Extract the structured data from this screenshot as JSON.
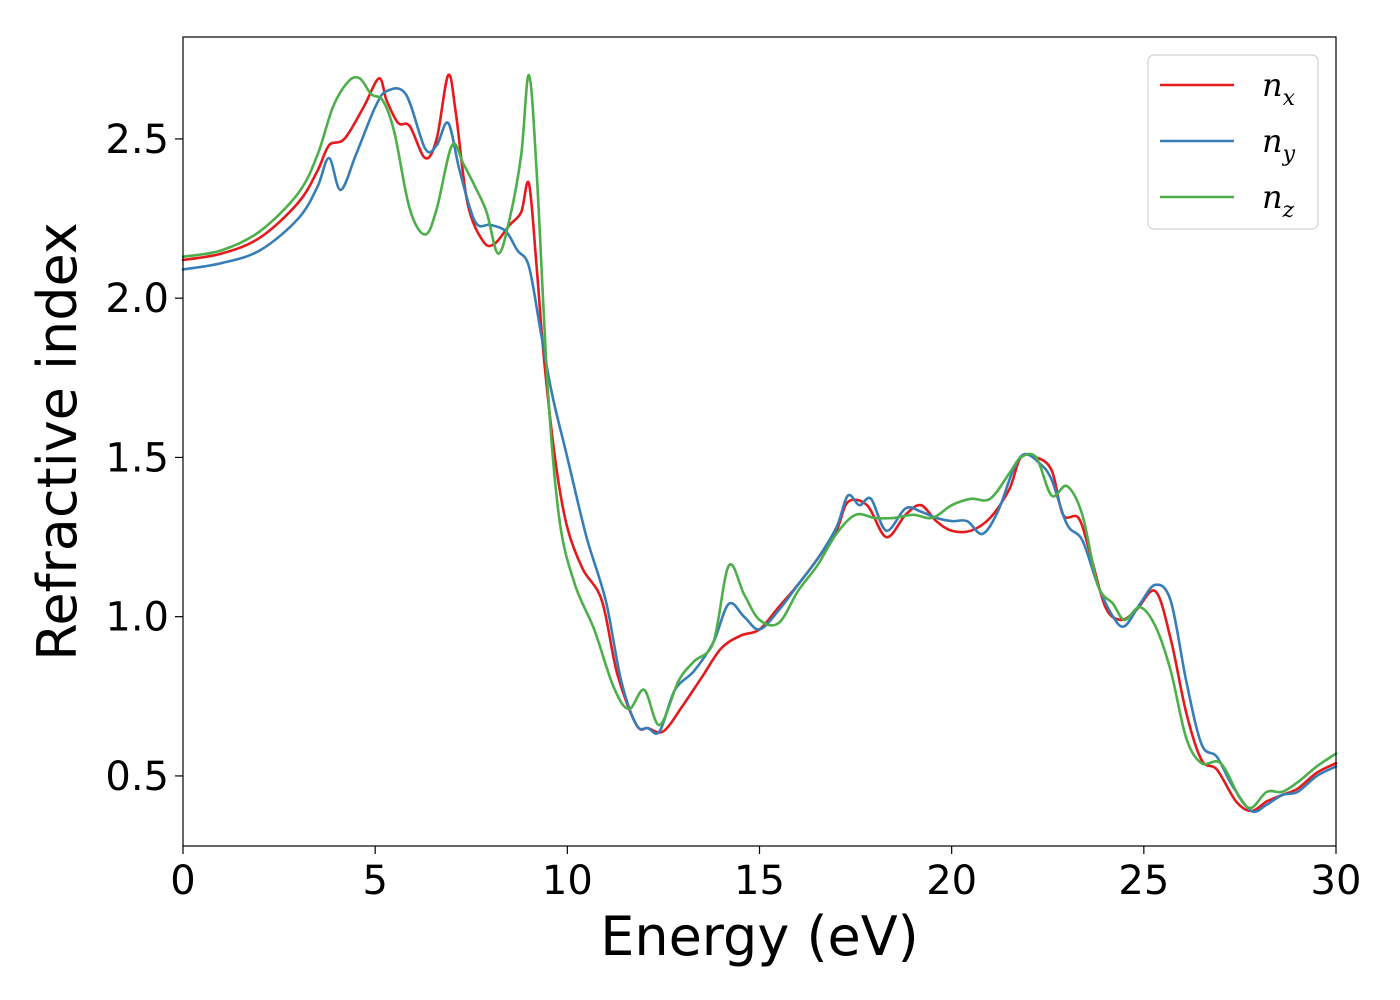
{
  "chart_data": {
    "type": "line",
    "xlabel": "Energy (eV)",
    "ylabel": "Refractive index",
    "xlim": [
      0,
      30
    ],
    "ylim": [
      0.28,
      2.82
    ],
    "xticks": [
      0,
      5,
      10,
      15,
      20,
      25,
      30
    ],
    "xtick_labels": [
      "0",
      "5",
      "10",
      "15",
      "20",
      "25",
      "30"
    ],
    "yticks": [
      0.5,
      1.0,
      1.5,
      2.0,
      2.5
    ],
    "ytick_labels": [
      "0.5",
      "1.0",
      "1.5",
      "2.0",
      "2.5"
    ],
    "grid": false,
    "legend_position": "top-right",
    "series": [
      {
        "name": "n_x",
        "label_base": "n",
        "label_sub": "x",
        "color": "#e41a1c",
        "points": [
          [
            0,
            2.12
          ],
          [
            1,
            2.14
          ],
          [
            2,
            2.19
          ],
          [
            3,
            2.3
          ],
          [
            3.5,
            2.4
          ],
          [
            3.8,
            2.48
          ],
          [
            4.2,
            2.5
          ],
          [
            4.7,
            2.6
          ],
          [
            5.1,
            2.69
          ],
          [
            5.3,
            2.62
          ],
          [
            5.6,
            2.55
          ],
          [
            5.9,
            2.54
          ],
          [
            6.3,
            2.44
          ],
          [
            6.6,
            2.5
          ],
          [
            6.9,
            2.7
          ],
          [
            7.1,
            2.58
          ],
          [
            7.4,
            2.3
          ],
          [
            7.8,
            2.18
          ],
          [
            8.1,
            2.17
          ],
          [
            8.5,
            2.23
          ],
          [
            8.8,
            2.27
          ],
          [
            9.0,
            2.36
          ],
          [
            9.2,
            2.1
          ],
          [
            9.4,
            1.8
          ],
          [
            9.7,
            1.48
          ],
          [
            10.0,
            1.28
          ],
          [
            10.4,
            1.15
          ],
          [
            10.9,
            1.05
          ],
          [
            11.3,
            0.82
          ],
          [
            11.8,
            0.66
          ],
          [
            12.1,
            0.65
          ],
          [
            12.5,
            0.64
          ],
          [
            13.0,
            0.72
          ],
          [
            13.5,
            0.81
          ],
          [
            14.0,
            0.9
          ],
          [
            14.5,
            0.94
          ],
          [
            15.0,
            0.96
          ],
          [
            15.5,
            1.03
          ],
          [
            16.0,
            1.1
          ],
          [
            16.5,
            1.18
          ],
          [
            17.0,
            1.27
          ],
          [
            17.3,
            1.36
          ],
          [
            17.8,
            1.35
          ],
          [
            18.3,
            1.25
          ],
          [
            18.8,
            1.32
          ],
          [
            19.2,
            1.35
          ],
          [
            19.6,
            1.3
          ],
          [
            20.0,
            1.27
          ],
          [
            20.5,
            1.27
          ],
          [
            21.0,
            1.31
          ],
          [
            21.5,
            1.4
          ],
          [
            21.8,
            1.5
          ],
          [
            22.2,
            1.5
          ],
          [
            22.6,
            1.46
          ],
          [
            22.9,
            1.32
          ],
          [
            23.3,
            1.31
          ],
          [
            23.6,
            1.2
          ],
          [
            24.0,
            1.03
          ],
          [
            24.4,
            0.99
          ],
          [
            24.8,
            1.02
          ],
          [
            25.3,
            1.08
          ],
          [
            25.7,
            0.93
          ],
          [
            26.1,
            0.7
          ],
          [
            26.5,
            0.55
          ],
          [
            26.9,
            0.52
          ],
          [
            27.4,
            0.42
          ],
          [
            27.8,
            0.39
          ],
          [
            28.2,
            0.42
          ],
          [
            28.6,
            0.44
          ],
          [
            29.0,
            0.46
          ],
          [
            29.5,
            0.51
          ],
          [
            30.0,
            0.54
          ]
        ]
      },
      {
        "name": "n_y",
        "label_base": "n",
        "label_sub": "y",
        "color": "#377eb8",
        "points": [
          [
            0,
            2.09
          ],
          [
            1,
            2.11
          ],
          [
            2,
            2.15
          ],
          [
            3,
            2.25
          ],
          [
            3.5,
            2.35
          ],
          [
            3.8,
            2.44
          ],
          [
            4.1,
            2.34
          ],
          [
            4.5,
            2.45
          ],
          [
            5.0,
            2.6
          ],
          [
            5.3,
            2.65
          ],
          [
            5.8,
            2.64
          ],
          [
            6.3,
            2.47
          ],
          [
            6.6,
            2.48
          ],
          [
            6.9,
            2.55
          ],
          [
            7.2,
            2.4
          ],
          [
            7.6,
            2.24
          ],
          [
            8.0,
            2.23
          ],
          [
            8.4,
            2.21
          ],
          [
            8.7,
            2.15
          ],
          [
            9.0,
            2.1
          ],
          [
            9.3,
            1.9
          ],
          [
            9.6,
            1.7
          ],
          [
            10.0,
            1.5
          ],
          [
            10.5,
            1.25
          ],
          [
            11.0,
            1.05
          ],
          [
            11.4,
            0.8
          ],
          [
            11.8,
            0.66
          ],
          [
            12.1,
            0.65
          ],
          [
            12.4,
            0.64
          ],
          [
            12.8,
            0.77
          ],
          [
            13.3,
            0.83
          ],
          [
            13.8,
            0.92
          ],
          [
            14.2,
            1.04
          ],
          [
            14.6,
            1.0
          ],
          [
            15.0,
            0.96
          ],
          [
            15.5,
            1.02
          ],
          [
            16.0,
            1.1
          ],
          [
            16.5,
            1.18
          ],
          [
            17.0,
            1.28
          ],
          [
            17.3,
            1.38
          ],
          [
            17.6,
            1.35
          ],
          [
            17.9,
            1.37
          ],
          [
            18.3,
            1.27
          ],
          [
            18.8,
            1.34
          ],
          [
            19.2,
            1.33
          ],
          [
            19.6,
            1.31
          ],
          [
            20.0,
            1.3
          ],
          [
            20.4,
            1.3
          ],
          [
            20.8,
            1.26
          ],
          [
            21.2,
            1.33
          ],
          [
            21.6,
            1.46
          ],
          [
            21.9,
            1.51
          ],
          [
            22.3,
            1.48
          ],
          [
            22.6,
            1.43
          ],
          [
            23.0,
            1.29
          ],
          [
            23.4,
            1.24
          ],
          [
            23.8,
            1.1
          ],
          [
            24.2,
            1.0
          ],
          [
            24.5,
            0.97
          ],
          [
            24.9,
            1.04
          ],
          [
            25.3,
            1.1
          ],
          [
            25.7,
            1.05
          ],
          [
            26.1,
            0.8
          ],
          [
            26.5,
            0.6
          ],
          [
            26.9,
            0.56
          ],
          [
            27.3,
            0.47
          ],
          [
            27.8,
            0.39
          ],
          [
            28.2,
            0.41
          ],
          [
            28.6,
            0.44
          ],
          [
            29.0,
            0.45
          ],
          [
            29.5,
            0.5
          ],
          [
            30.0,
            0.53
          ]
        ]
      },
      {
        "name": "n_z",
        "label_base": "n",
        "label_sub": "z",
        "color": "#4daf4a",
        "points": [
          [
            0,
            2.13
          ],
          [
            1,
            2.15
          ],
          [
            2,
            2.21
          ],
          [
            3,
            2.33
          ],
          [
            3.5,
            2.45
          ],
          [
            3.9,
            2.6
          ],
          [
            4.3,
            2.68
          ],
          [
            4.6,
            2.69
          ],
          [
            4.9,
            2.64
          ],
          [
            5.2,
            2.62
          ],
          [
            5.5,
            2.52
          ],
          [
            5.9,
            2.28
          ],
          [
            6.3,
            2.2
          ],
          [
            6.6,
            2.28
          ],
          [
            7.0,
            2.48
          ],
          [
            7.3,
            2.42
          ],
          [
            7.6,
            2.35
          ],
          [
            7.9,
            2.27
          ],
          [
            8.2,
            2.14
          ],
          [
            8.5,
            2.25
          ],
          [
            8.8,
            2.45
          ],
          [
            9.0,
            2.7
          ],
          [
            9.2,
            2.4
          ],
          [
            9.5,
            1.7
          ],
          [
            9.8,
            1.3
          ],
          [
            10.2,
            1.1
          ],
          [
            10.7,
            0.96
          ],
          [
            11.2,
            0.78
          ],
          [
            11.6,
            0.71
          ],
          [
            12.0,
            0.77
          ],
          [
            12.4,
            0.66
          ],
          [
            12.9,
            0.8
          ],
          [
            13.3,
            0.86
          ],
          [
            13.8,
            0.92
          ],
          [
            14.2,
            1.16
          ],
          [
            14.6,
            1.07
          ],
          [
            15.0,
            0.99
          ],
          [
            15.5,
            0.98
          ],
          [
            16.0,
            1.08
          ],
          [
            16.5,
            1.16
          ],
          [
            17.0,
            1.26
          ],
          [
            17.5,
            1.32
          ],
          [
            18.0,
            1.31
          ],
          [
            18.5,
            1.31
          ],
          [
            19.0,
            1.32
          ],
          [
            19.5,
            1.31
          ],
          [
            20.0,
            1.35
          ],
          [
            20.5,
            1.37
          ],
          [
            21.0,
            1.37
          ],
          [
            21.5,
            1.45
          ],
          [
            21.8,
            1.5
          ],
          [
            22.2,
            1.5
          ],
          [
            22.6,
            1.38
          ],
          [
            23.0,
            1.41
          ],
          [
            23.4,
            1.32
          ],
          [
            23.8,
            1.1
          ],
          [
            24.2,
            1.04
          ],
          [
            24.5,
            0.99
          ],
          [
            24.9,
            1.03
          ],
          [
            25.3,
            0.97
          ],
          [
            25.7,
            0.83
          ],
          [
            26.1,
            0.62
          ],
          [
            26.5,
            0.54
          ],
          [
            27.0,
            0.54
          ],
          [
            27.5,
            0.43
          ],
          [
            27.8,
            0.4
          ],
          [
            28.2,
            0.45
          ],
          [
            28.6,
            0.45
          ],
          [
            29.0,
            0.48
          ],
          [
            29.5,
            0.53
          ],
          [
            30.0,
            0.57
          ]
        ]
      }
    ]
  }
}
